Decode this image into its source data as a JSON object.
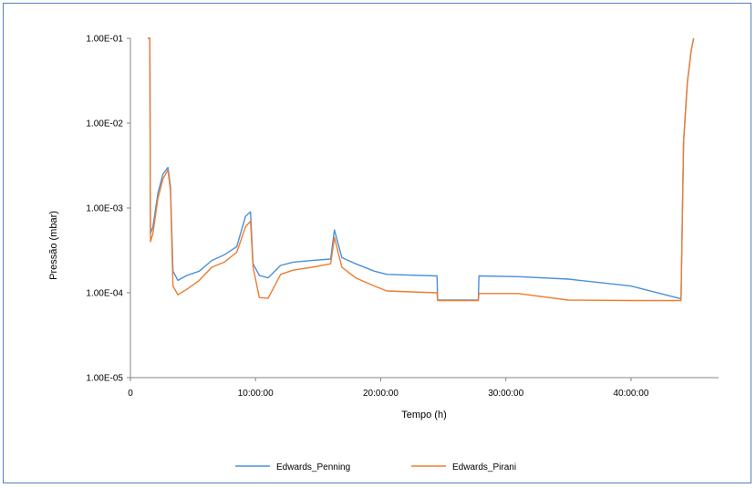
{
  "chart_data": {
    "type": "line",
    "title": "",
    "xlabel": "Tempo (h)",
    "ylabel": "Pressão (mbar)",
    "y_scale": "log",
    "ylim": [
      1e-05,
      0.1
    ],
    "xlim_hours": [
      0,
      47
    ],
    "x_unit": "hours",
    "y_ticks": [
      {
        "value": 1e-05,
        "label": "1.00E-05"
      },
      {
        "value": 0.0001,
        "label": "1.00E-04"
      },
      {
        "value": 0.001,
        "label": "1.00E-03"
      },
      {
        "value": 0.01,
        "label": "1.00E-02"
      },
      {
        "value": 0.1,
        "label": "1.00E-01"
      }
    ],
    "x_ticks": [
      {
        "value": 0,
        "label": "0"
      },
      {
        "value": 10,
        "label": "10:00:00"
      },
      {
        "value": 20,
        "label": "20:00:00"
      },
      {
        "value": 30,
        "label": "30:00:00"
      },
      {
        "value": 40,
        "label": "40:00:00"
      }
    ],
    "grid": false,
    "legend_position": "bottom",
    "series": [
      {
        "name": "Edwards_Penning",
        "color": "#4a90d9",
        "points": [
          [
            1.4,
            0.1
          ],
          [
            1.55,
            0.1
          ],
          [
            1.6,
            0.0005
          ],
          [
            1.8,
            0.0006
          ],
          [
            2.2,
            0.0015
          ],
          [
            2.6,
            0.0025
          ],
          [
            3.0,
            0.003
          ],
          [
            3.2,
            0.0018
          ],
          [
            3.4,
            0.00018
          ],
          [
            3.8,
            0.00014
          ],
          [
            4.5,
            0.00016
          ],
          [
            5.5,
            0.00018
          ],
          [
            6.5,
            0.00024
          ],
          [
            7.5,
            0.00028
          ],
          [
            8.5,
            0.00035
          ],
          [
            9.2,
            0.0008
          ],
          [
            9.6,
            0.0009
          ],
          [
            9.8,
            0.00022
          ],
          [
            10.3,
            0.00016
          ],
          [
            11.0,
            0.00015
          ],
          [
            12.0,
            0.00021
          ],
          [
            13.0,
            0.00023
          ],
          [
            14.5,
            0.00024
          ],
          [
            16.0,
            0.00025
          ],
          [
            16.3,
            0.00055
          ],
          [
            16.9,
            0.00026
          ],
          [
            18.0,
            0.00022
          ],
          [
            19.5,
            0.00018
          ],
          [
            20.5,
            0.000165
          ],
          [
            24.5,
            0.000158
          ],
          [
            24.55,
            8.2e-05
          ],
          [
            27.8,
            8.2e-05
          ],
          [
            27.85,
            0.000158
          ],
          [
            31.0,
            0.000155
          ],
          [
            35.0,
            0.000145
          ],
          [
            40.0,
            0.00012
          ],
          [
            44.0,
            8.5e-05
          ],
          [
            44.2,
            0.006
          ],
          [
            44.5,
            0.03
          ],
          [
            44.8,
            0.07
          ],
          [
            45.0,
            0.1
          ]
        ]
      },
      {
        "name": "Edwards_Pirani",
        "color": "#ed7d31",
        "points": [
          [
            1.4,
            0.1
          ],
          [
            1.55,
            0.1
          ],
          [
            1.6,
            0.0004
          ],
          [
            1.8,
            0.0005
          ],
          [
            2.2,
            0.0013
          ],
          [
            2.6,
            0.0022
          ],
          [
            3.0,
            0.0028
          ],
          [
            3.2,
            0.0016
          ],
          [
            3.4,
            0.00012
          ],
          [
            3.8,
            9.5e-05
          ],
          [
            4.5,
            0.00011
          ],
          [
            5.5,
            0.00014
          ],
          [
            6.5,
            0.0002
          ],
          [
            7.5,
            0.00023
          ],
          [
            8.5,
            0.0003
          ],
          [
            9.2,
            0.0006
          ],
          [
            9.6,
            0.0007
          ],
          [
            9.8,
            0.0002
          ],
          [
            10.3,
            8.8e-05
          ],
          [
            11.0,
            8.6e-05
          ],
          [
            12.0,
            0.000165
          ],
          [
            13.0,
            0.000185
          ],
          [
            14.5,
            0.0002
          ],
          [
            16.0,
            0.00022
          ],
          [
            16.3,
            0.00045
          ],
          [
            16.9,
            0.0002
          ],
          [
            18.0,
            0.00015
          ],
          [
            19.5,
            0.00012
          ],
          [
            20.5,
            0.000105
          ],
          [
            24.5,
            0.0001
          ],
          [
            24.55,
            8.1e-05
          ],
          [
            27.8,
            8.1e-05
          ],
          [
            27.85,
            9.8e-05
          ],
          [
            31.0,
            9.8e-05
          ],
          [
            35.0,
            8.2e-05
          ],
          [
            40.0,
            8.1e-05
          ],
          [
            44.0,
            8.1e-05
          ],
          [
            44.2,
            0.006
          ],
          [
            44.5,
            0.03
          ],
          [
            44.8,
            0.07
          ],
          [
            45.0,
            0.1
          ]
        ]
      }
    ]
  }
}
